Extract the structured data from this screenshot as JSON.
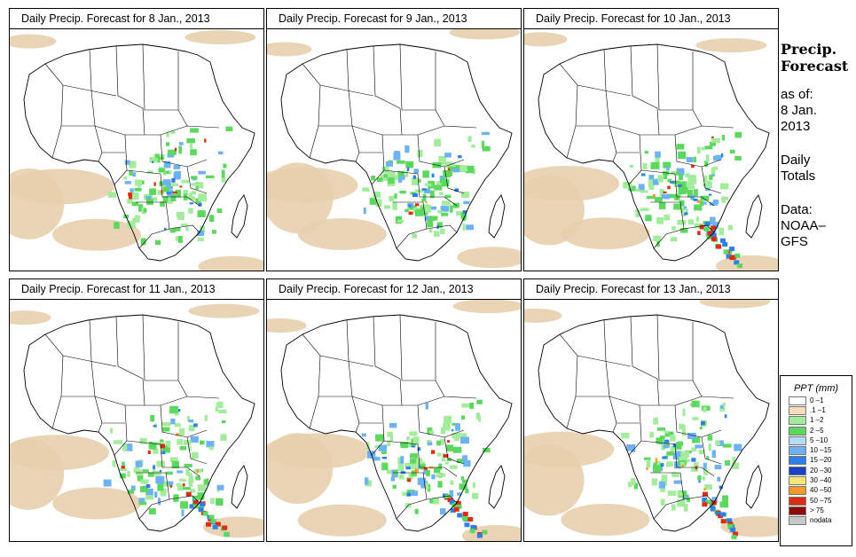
{
  "panels": [
    {
      "title": "Daily Precip. Forecast for  8 Jan., 2013"
    },
    {
      "title": "Daily Precip. Forecast for  9 Jan., 2013"
    },
    {
      "title": "Daily Precip. Forecast for  10 Jan., 2013"
    },
    {
      "title": "Daily Precip. Forecast for  11 Jan., 2013"
    },
    {
      "title": "Daily Precip. Forecast for  12 Jan., 2013"
    },
    {
      "title": "Daily Precip. Forecast for  13 Jan., 2013"
    }
  ],
  "sidebar": {
    "title_line1": "Precip.",
    "title_line2": "Forecast",
    "asof_line1": "as of:",
    "asof_line2": "8 Jan.",
    "asof_line3": "2013",
    "totals_line1": "Daily",
    "totals_line2": "Totals",
    "data_line1": "Data:",
    "data_line2": "NOAA–",
    "data_line3": "GFS"
  },
  "legend": {
    "title": "PPT (mm)",
    "items": [
      {
        "label": "0 –1",
        "color": "#ffffff"
      },
      {
        "label": ".1 –1",
        "color": "#f5dcbd"
      },
      {
        "label": "1 –2",
        "color": "#a3ec9c"
      },
      {
        "label": "2 –5",
        "color": "#5cd85f"
      },
      {
        "label": "5 –10",
        "color": "#b6dcf7"
      },
      {
        "label": "10 –15",
        "color": "#6eb2f2"
      },
      {
        "label": "15 –20",
        "color": "#2e7fe6"
      },
      {
        "label": "20 –30",
        "color": "#1a43c4"
      },
      {
        "label": "30 –40",
        "color": "#f6e67a"
      },
      {
        "label": "40 –50",
        "color": "#f29a2a"
      },
      {
        "label": "50 –75",
        "color": "#db2d13"
      },
      {
        "label": "> 75",
        "color": "#8e0c07"
      },
      {
        "label": "nodata",
        "color": "#c8c8c8"
      }
    ]
  },
  "colors": {
    "sand": "#e8cfae",
    "green_light": "#a3ec9c",
    "green": "#5cd85f",
    "blue_light": "#6eb2f2",
    "blue": "#2e7fe6",
    "red": "#db2d13",
    "orange": "#f29a2a"
  }
}
